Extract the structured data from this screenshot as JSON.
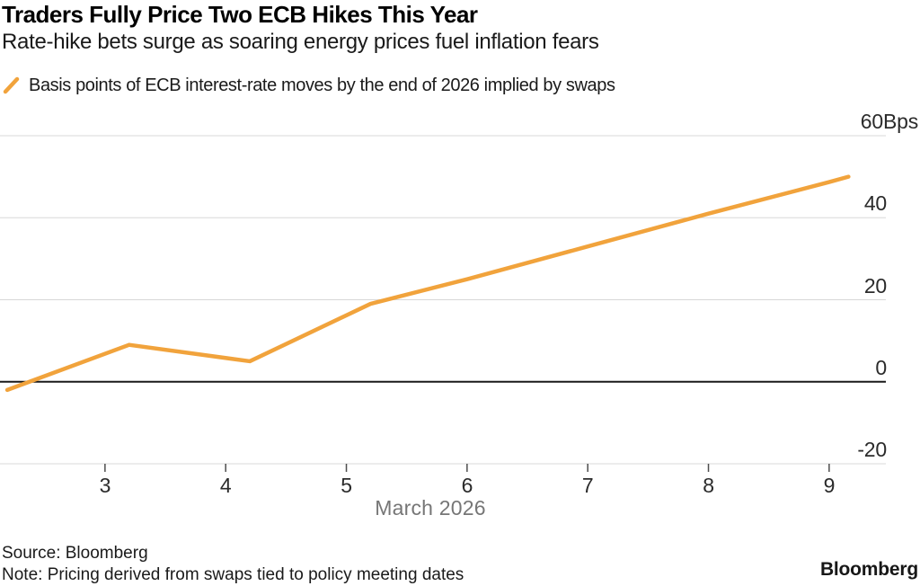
{
  "header": {
    "title": "Traders Fully Price Two ECB Hikes This Year",
    "subtitle": "Rate-hike bets surge as soaring energy prices fuel inflation fears"
  },
  "legend": {
    "label": "Basis points of ECB interest-rate moves by the end of 2026 implied by swaps"
  },
  "chart_data": {
    "type": "line",
    "title": "Traders Fully Price Two ECB Hikes This Year",
    "subtitle": "Rate-hike bets surge as soaring energy prices fuel inflation fears",
    "xlabel": "March 2026",
    "unit": "Bps",
    "series": [
      {
        "name": "Basis points of ECB interest-rate moves by the end of 2026 implied by swaps",
        "color": "#F1A33C",
        "x": [
          2.19,
          3.2,
          4.2,
          5.2,
          6.0,
          7.0,
          8.0,
          9.0,
          9.16
        ],
        "y": [
          -2,
          9,
          5,
          19,
          25,
          33,
          41,
          48.7,
          50
        ]
      }
    ],
    "xticks": [
      3,
      4,
      5,
      6,
      7,
      8,
      9
    ],
    "xtick_labels": [
      "3",
      "4",
      "5",
      "6",
      "7",
      "8",
      "9"
    ],
    "yticks": [
      -20,
      0,
      20,
      40,
      60
    ],
    "ytick_labels": [
      "-20",
      "0",
      "20",
      "40",
      "60Bps"
    ],
    "xlim": [
      2.13,
      9.47
    ],
    "ylim": [
      -20,
      60
    ],
    "grid": "horizontal",
    "zero_baseline": true,
    "legend_position": "top-left"
  },
  "footer": {
    "source": "Source: Bloomberg",
    "note": "Note: Pricing derived from swaps tied to policy meeting dates",
    "brand": "Bloomberg"
  },
  "colors": {
    "series": "#F1A33C",
    "grid": "#D8D8D8",
    "baseline": "#1A1A1A",
    "tick": "#4D4D4D",
    "axis_text": "#2B2B2B",
    "muted_text": "#767676",
    "text": "#000000",
    "background": "#FFFFFF"
  }
}
